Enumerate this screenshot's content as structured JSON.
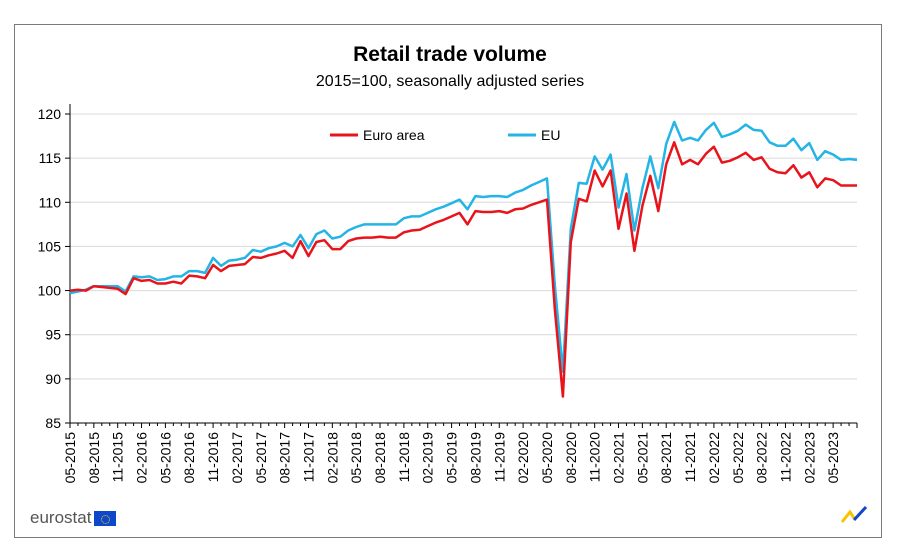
{
  "chart_data": {
    "type": "line",
    "title": "Retail trade volume",
    "subtitle": "2015=100, seasonally adjusted series",
    "ylim": [
      85,
      120
    ],
    "yticks": [
      85,
      90,
      95,
      100,
      105,
      110,
      115,
      120
    ],
    "xlabel": "",
    "ylabel": "",
    "grid": "horizontal",
    "legend": "top",
    "tick_labels": [
      "05-2015",
      "08-2015",
      "11-2015",
      "02-2016",
      "05-2016",
      "08-2016",
      "11-2016",
      "02-2017",
      "05-2017",
      "08-2017",
      "11-2017",
      "02-2018",
      "05-2018",
      "08-2018",
      "11-2018",
      "02-2019",
      "05-2019",
      "08-2019",
      "11-2019",
      "02-2020",
      "05-2020",
      "08-2020",
      "11-2020",
      "02-2021",
      "05-2021",
      "08-2021",
      "11-2021",
      "02-2022",
      "05-2022",
      "08-2022",
      "11-2022",
      "02-2023",
      "05-2023"
    ],
    "start_month": "05-2015",
    "series": [
      {
        "name": "Euro area",
        "color": "#e8141c",
        "values": [
          100.0,
          100.1,
          100.0,
          100.5,
          100.4,
          100.3,
          100.2,
          99.6,
          101.4,
          101.1,
          101.2,
          100.8,
          100.8,
          101.0,
          100.8,
          101.7,
          101.6,
          101.4,
          102.9,
          102.2,
          102.8,
          102.9,
          103.0,
          103.8,
          103.7,
          104.0,
          104.2,
          104.5,
          103.7,
          105.6,
          103.9,
          105.5,
          105.7,
          104.7,
          104.7,
          105.6,
          105.9,
          106.0,
          106.0,
          106.1,
          106.0,
          106.0,
          106.6,
          106.8,
          106.9,
          107.3,
          107.7,
          108.0,
          108.4,
          108.8,
          107.5,
          109.0,
          108.9,
          108.9,
          109.0,
          108.8,
          109.2,
          109.3,
          109.7,
          110.0,
          110.3,
          97.8,
          88.0,
          105.5,
          110.4,
          110.1,
          113.6,
          111.8,
          113.6,
          107.0,
          111.0,
          104.5,
          109.6,
          113.0,
          109.0,
          114.3,
          116.8,
          114.3,
          114.8,
          114.3,
          115.5,
          116.3,
          114.5,
          114.7,
          115.1,
          115.6,
          114.8,
          115.1,
          113.8,
          113.4,
          113.3,
          114.2,
          112.8,
          113.4,
          111.7,
          112.7,
          112.5,
          111.9,
          111.9,
          111.9
        ]
      },
      {
        "name": "EU",
        "color": "#25b4e6",
        "values": [
          99.7,
          99.9,
          100.1,
          100.5,
          100.5,
          100.5,
          100.5,
          99.9,
          101.6,
          101.5,
          101.6,
          101.2,
          101.3,
          101.6,
          101.6,
          102.2,
          102.2,
          102.0,
          103.7,
          102.8,
          103.4,
          103.5,
          103.7,
          104.6,
          104.4,
          104.8,
          105.0,
          105.4,
          105.0,
          106.3,
          104.8,
          106.4,
          106.8,
          105.9,
          106.1,
          106.8,
          107.2,
          107.5,
          107.5,
          107.5,
          107.5,
          107.5,
          108.2,
          108.4,
          108.4,
          108.8,
          109.2,
          109.5,
          109.9,
          110.3,
          109.2,
          110.7,
          110.6,
          110.7,
          110.7,
          110.6,
          111.1,
          111.4,
          111.9,
          112.3,
          112.7,
          100.5,
          90.8,
          107.0,
          112.2,
          112.1,
          115.2,
          113.7,
          115.4,
          109.4,
          113.2,
          106.8,
          111.6,
          115.2,
          111.6,
          116.6,
          119.1,
          117.0,
          117.3,
          117.0,
          118.2,
          119.0,
          117.4,
          117.7,
          118.1,
          118.8,
          118.2,
          118.1,
          116.8,
          116.4,
          116.4,
          117.2,
          115.9,
          116.7,
          114.8,
          115.8,
          115.4,
          114.8,
          114.9,
          114.8
        ]
      }
    ]
  },
  "footer": {
    "logo_text": "eurostat"
  }
}
